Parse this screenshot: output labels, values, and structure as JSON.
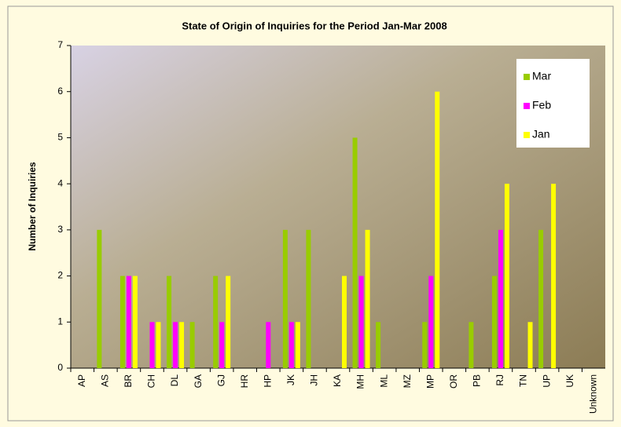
{
  "chart_data": {
    "type": "bar",
    "title": "State of Origin of Inquiries for the Period Jan-Mar 2008",
    "y_label": "Number of Inquiries",
    "categories": [
      "AP",
      "AS",
      "BR",
      "CH",
      "DL",
      "GA",
      "GJ",
      "HR",
      "HP",
      "JK",
      "JH",
      "KA",
      "MH",
      "ML",
      "MZ",
      "MP",
      "OR",
      "PB",
      "RJ",
      "TN",
      "UP",
      "UK",
      "Unknown"
    ],
    "series": [
      {
        "name": "Mar",
        "color": "#99cc00",
        "values": [
          0,
          3,
          2,
          0,
          2,
          1,
          2,
          0,
          0,
          3,
          3,
          0,
          5,
          1,
          0,
          1,
          0,
          1,
          2,
          0,
          3,
          0,
          0
        ]
      },
      {
        "name": "Feb",
        "color": "#ff00ff",
        "values": [
          0,
          0,
          2,
          1,
          1,
          0,
          1,
          0,
          1,
          1,
          0,
          0,
          2,
          0,
          0,
          2,
          0,
          0,
          3,
          0,
          0,
          0,
          0
        ]
      },
      {
        "name": "Jan",
        "color": "#ffff00",
        "values": [
          0,
          0,
          2,
          1,
          1,
          0,
          2,
          0,
          0,
          1,
          0,
          2,
          3,
          0,
          0,
          6,
          0,
          0,
          4,
          1,
          4,
          0,
          0
        ]
      }
    ],
    "ylim": [
      0,
      7
    ],
    "yticks": [
      0,
      1,
      2,
      3,
      4,
      5,
      6,
      7
    ],
    "legend": "top-right"
  }
}
